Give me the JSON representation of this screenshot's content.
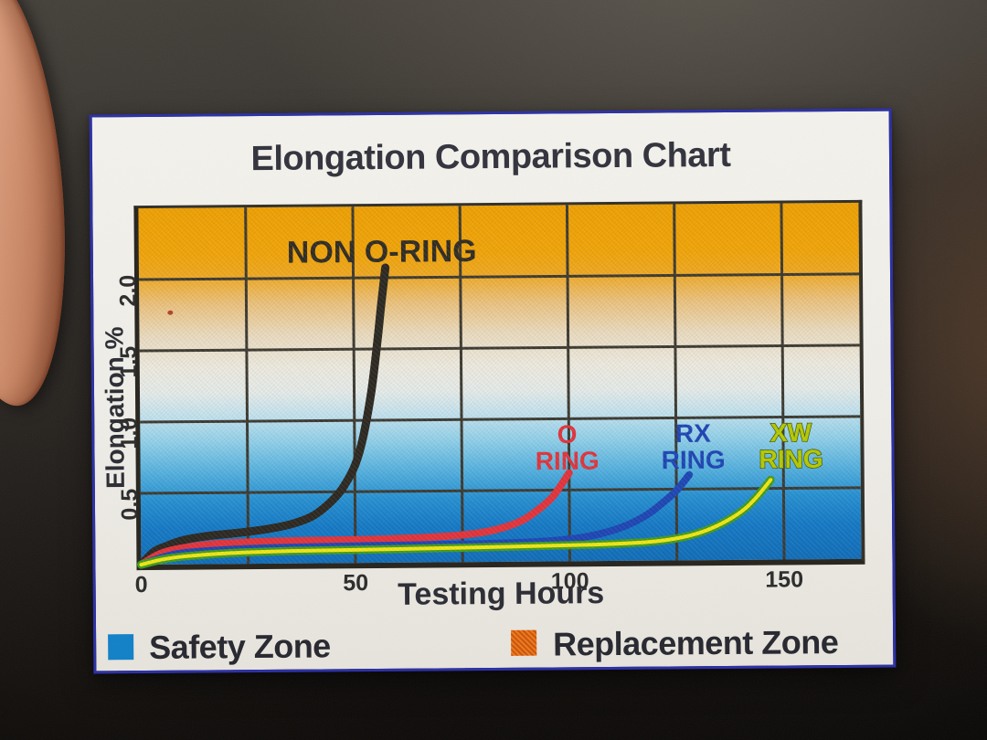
{
  "card": {
    "title": "Elongation Comparison Chart",
    "border_color": "#2A2EA6",
    "background": "#F0EEE8"
  },
  "chart_data": {
    "type": "line",
    "title": "Elongation Comparison Chart",
    "xlabel": "Testing Hours",
    "ylabel": "Elongation %",
    "xlim": [
      0,
      168
    ],
    "ylim": [
      0,
      2.5
    ],
    "x_ticks": [
      "0",
      "50",
      "100",
      "150"
    ],
    "y_ticks": [
      "0.5",
      "1.0",
      "1.5",
      "2.0"
    ],
    "grid": {
      "x_step": 25,
      "y_step": 0.5,
      "color": "#3B382F",
      "on": true
    },
    "legend_position": "bottom",
    "background_zones": [
      {
        "label": "Replacement Zone",
        "color": "#F2A102",
        "position": "top"
      },
      {
        "label": "Safety Zone",
        "color": "#0E6CB8",
        "position": "bottom"
      }
    ],
    "series": [
      {
        "name": "NON O-RING",
        "color": "#2A261F",
        "width": 9,
        "label_lines": [
          "NON O-RING"
        ],
        "label_color": "#2E2A22",
        "label_size": 34,
        "label_anchor": [
          56.7,
          2.11
        ],
        "points": [
          [
            0,
            0
          ],
          [
            3,
            0.09
          ],
          [
            6,
            0.13
          ],
          [
            10,
            0.17
          ],
          [
            15,
            0.195
          ],
          [
            20,
            0.21
          ],
          [
            25,
            0.225
          ],
          [
            30,
            0.245
          ],
          [
            35,
            0.275
          ],
          [
            40,
            0.33
          ],
          [
            44,
            0.42
          ],
          [
            47,
            0.52
          ],
          [
            50,
            0.68
          ],
          [
            52,
            0.88
          ],
          [
            54,
            1.2
          ],
          [
            55.5,
            1.55
          ],
          [
            56.5,
            1.82
          ],
          [
            57.5,
            2.07
          ]
        ]
      },
      {
        "name": "O RING",
        "color": "#E2323A",
        "width": 8,
        "label_lines": [
          "O",
          "RING"
        ],
        "label_color": "#E2323A",
        "label_size": 28,
        "label_anchor": [
          99.6,
          0.83
        ],
        "points": [
          [
            0,
            0
          ],
          [
            4,
            0.07
          ],
          [
            8,
            0.105
          ],
          [
            15,
            0.135
          ],
          [
            25,
            0.152
          ],
          [
            40,
            0.16
          ],
          [
            55,
            0.165
          ],
          [
            70,
            0.18
          ],
          [
            78,
            0.2
          ],
          [
            84,
            0.235
          ],
          [
            89,
            0.29
          ],
          [
            93,
            0.37
          ],
          [
            96,
            0.45
          ],
          [
            98,
            0.53
          ],
          [
            100,
            0.62
          ]
        ]
      },
      {
        "name": "RX RING",
        "color": "#1C44B4",
        "width": 8,
        "label_lines": [
          "RX",
          "RING"
        ],
        "label_color": "#1C44B4",
        "label_size": 28,
        "label_anchor": [
          129,
          0.83
        ],
        "points": [
          [
            0,
            0
          ],
          [
            5,
            0.05
          ],
          [
            10,
            0.08
          ],
          [
            20,
            0.1
          ],
          [
            35,
            0.113
          ],
          [
            55,
            0.12
          ],
          [
            75,
            0.125
          ],
          [
            90,
            0.135
          ],
          [
            100,
            0.155
          ],
          [
            107,
            0.19
          ],
          [
            113,
            0.245
          ],
          [
            118,
            0.32
          ],
          [
            122,
            0.41
          ],
          [
            125,
            0.49
          ],
          [
            128,
            0.6
          ]
        ]
      },
      {
        "name": "XW RING",
        "color": "#F2E713",
        "outline_color": "#3F9B1E",
        "width": 4,
        "label_lines": [
          "XW",
          "RING"
        ],
        "label_color": "#B5CC00",
        "label_outline": "#4F5D08",
        "label_size": 28,
        "label_anchor": [
          151.8,
          0.83
        ],
        "points": [
          [
            0,
            0
          ],
          [
            5,
            0.035
          ],
          [
            10,
            0.055
          ],
          [
            20,
            0.075
          ],
          [
            35,
            0.087
          ],
          [
            60,
            0.095
          ],
          [
            85,
            0.105
          ],
          [
            105,
            0.115
          ],
          [
            118,
            0.13
          ],
          [
            126,
            0.16
          ],
          [
            132,
            0.21
          ],
          [
            137,
            0.28
          ],
          [
            141,
            0.36
          ],
          [
            144,
            0.45
          ],
          [
            147,
            0.56
          ]
        ]
      }
    ]
  },
  "legend": {
    "items": [
      {
        "label": "Safety Zone",
        "color": "#1080C8"
      },
      {
        "label": "Replacement Zone",
        "color": "#F07818"
      }
    ]
  }
}
